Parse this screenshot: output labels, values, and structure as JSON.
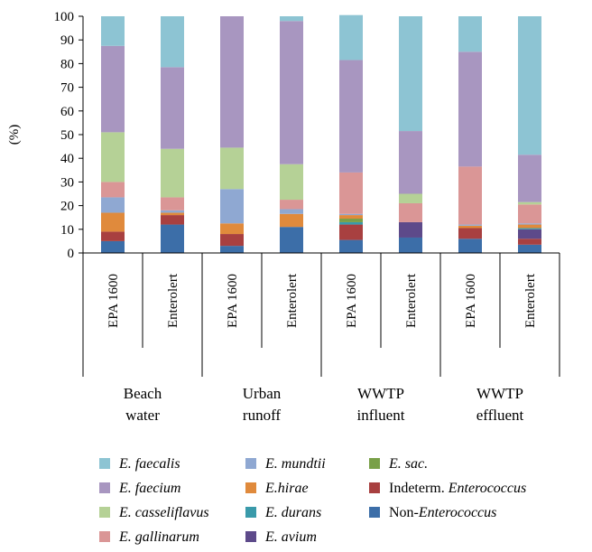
{
  "chart_data": {
    "type": "bar",
    "stacked": true,
    "percent": true,
    "ylabel": "(%)",
    "ylim": [
      0,
      100
    ],
    "yticks": [
      "0",
      "10",
      "20",
      "30",
      "40",
      "50",
      "60",
      "70",
      "80",
      "90",
      "100"
    ],
    "grid": false,
    "legend_position": "bottom",
    "categories": [
      "EPA 1600",
      "Enterolert",
      "EPA 1600",
      "Enterolert",
      "EPA 1600",
      "Enterolert",
      "EPA 1600",
      "Enterolert"
    ],
    "groups": [
      {
        "lines": [
          "Beach",
          "water"
        ]
      },
      {
        "lines": [
          "Urban",
          "runoff"
        ]
      },
      {
        "lines": [
          "WWTP",
          "influent"
        ]
      },
      {
        "lines": [
          "WWTP",
          "effluent"
        ]
      }
    ],
    "series": [
      {
        "name": "Non-Enterococcus",
        "parts": [
          {
            "t": "Non-",
            "i": false
          },
          {
            "t": "Enterococcus",
            "i": true
          }
        ],
        "color": "#3c6ea8",
        "values": [
          5.0,
          12.0,
          3.0,
          11.0,
          5.5,
          6.5,
          6.0,
          3.5
        ]
      },
      {
        "name": "Indeterm. Enterococcus",
        "parts": [
          {
            "t": "Indeterm. ",
            "i": false
          },
          {
            "t": "Enterococcus",
            "i": true
          }
        ],
        "color": "#a84040",
        "values": [
          4.0,
          4.0,
          5.0,
          0.0,
          6.5,
          0.0,
          4.5,
          2.5
        ]
      },
      {
        "name": "E. avium",
        "parts": [
          {
            "t": "E. avium",
            "i": true
          }
        ],
        "color": "#5d4a8a",
        "values": [
          0.0,
          0.0,
          0.0,
          0.0,
          0.0,
          6.5,
          0.0,
          4.0
        ]
      },
      {
        "name": "E. durans",
        "parts": [
          {
            "t": "E. durans",
            "i": true
          }
        ],
        "color": "#3a9aaa",
        "values": [
          0.0,
          0.0,
          0.0,
          0.0,
          1.0,
          0.0,
          0.0,
          0.5
        ]
      },
      {
        "name": "E. sac.",
        "parts": [
          {
            "t": "E. sac.",
            "i": true
          }
        ],
        "color": "#79a048",
        "values": [
          0.0,
          0.0,
          0.0,
          0.0,
          1.5,
          0.0,
          0.0,
          0.0
        ]
      },
      {
        "name": "E.hirae",
        "parts": [
          {
            "t": "E.hirae",
            "i": true
          }
        ],
        "color": "#e08a3c",
        "values": [
          8.0,
          1.0,
          4.5,
          5.5,
          1.5,
          0.0,
          1.0,
          1.5
        ]
      },
      {
        "name": "E. mundtii",
        "parts": [
          {
            "t": "E. mundtii",
            "i": true
          }
        ],
        "color": "#8fa8d2",
        "values": [
          6.5,
          1.0,
          14.5,
          2.0,
          0.5,
          0.0,
          0.5,
          0.5
        ]
      },
      {
        "name": "E. gallinarum",
        "parts": [
          {
            "t": "E. gallinarum",
            "i": true
          }
        ],
        "color": "#da9696",
        "values": [
          6.5,
          5.5,
          0.0,
          4.0,
          17.5,
          8.0,
          24.5,
          8.0
        ]
      },
      {
        "name": "E. casseliflavus",
        "parts": [
          {
            "t": "E. casseliflavus",
            "i": true
          }
        ],
        "color": "#b5d196",
        "values": [
          21.0,
          20.5,
          17.5,
          15.0,
          0.0,
          4.0,
          0.0,
          1.0
        ]
      },
      {
        "name": "E. faecium",
        "parts": [
          {
            "t": "E. faecium",
            "i": true
          }
        ],
        "color": "#a896c0",
        "values": [
          36.5,
          34.5,
          55.5,
          60.5,
          47.5,
          26.5,
          48.5,
          20.0
        ]
      },
      {
        "name": "E. faecalis",
        "parts": [
          {
            "t": "E. faecalis",
            "i": true
          }
        ],
        "color": "#8dc4d3",
        "values": [
          12.5,
          21.5,
          0.0,
          2.0,
          19.0,
          48.5,
          15.0,
          58.5
        ]
      }
    ],
    "legend_order": [
      "E. faecalis",
      "E. faecium",
      "E. casseliflavus",
      "E. gallinarum",
      "E. mundtii",
      "E.hirae",
      "E. durans",
      "E. avium",
      "E. sac.",
      "Indeterm. Enterococcus",
      "Non-Enterococcus"
    ]
  }
}
